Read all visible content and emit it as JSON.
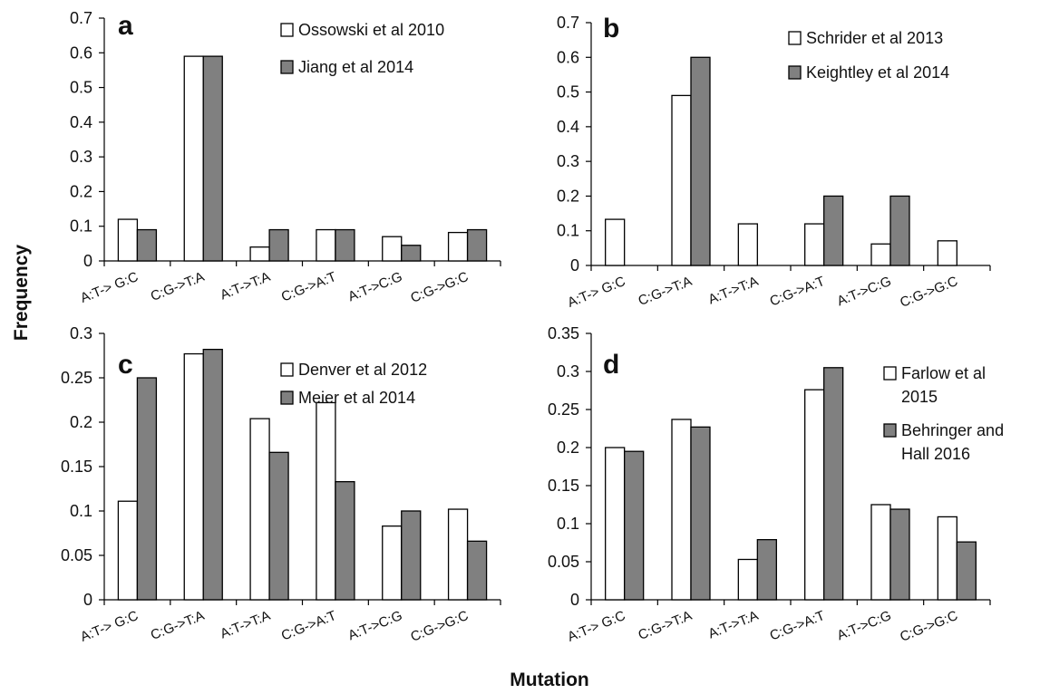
{
  "figure": {
    "ylabel": "Frequency",
    "xlabel": "Mutation"
  },
  "colors": {
    "series_1": "#ffffff",
    "series_2": "#808080",
    "bar_outline": "#000000"
  },
  "chart_data": [
    {
      "type": "bar",
      "panel": "a",
      "categories": [
        "A:T-> G:C",
        "C:G->T:A",
        "A:T->T:A",
        "C:G->A:T",
        "A:T->C:G",
        "C:G->G:C"
      ],
      "yticks": [
        "0",
        "0.1",
        "0.2",
        "0.3",
        "0.4",
        "0.5",
        "0.6",
        "0.7"
      ],
      "ylim": [
        0,
        0.7
      ],
      "legend_position": "top-right",
      "series": [
        {
          "name": "Ossowski et al 2010",
          "values": [
            0.12,
            0.59,
            0.04,
            0.09,
            0.07,
            0.082
          ]
        },
        {
          "name": "Jiang et al 2014",
          "values": [
            0.09,
            0.59,
            0.09,
            0.09,
            0.045,
            0.09
          ]
        }
      ]
    },
    {
      "type": "bar",
      "panel": "b",
      "categories": [
        "A:T-> G:C",
        "C:G->T:A",
        "A:T->T:A",
        "C:G->A:T",
        "A:T->C:G",
        "C:G->G:C"
      ],
      "yticks": [
        "0",
        "0.1",
        "0.2",
        "0.3",
        "0.4",
        "0.5",
        "0.6",
        "0.7"
      ],
      "ylim": [
        0,
        0.7
      ],
      "legend_position": "top-right",
      "series": [
        {
          "name": "Schrider et al 2013",
          "values": [
            0.133,
            0.49,
            0.12,
            0.12,
            0.062,
            0.071
          ]
        },
        {
          "name": "Keightley et al 2014",
          "values": [
            0,
            0.6,
            0,
            0.2,
            0.2,
            0
          ]
        }
      ]
    },
    {
      "type": "bar",
      "panel": "c",
      "categories": [
        "A:T-> G:C",
        "C:G->T:A",
        "A:T->T:A",
        "C:G->A:T",
        "A:T->C:G",
        "C:G->G:C"
      ],
      "yticks": [
        "0",
        "0.05",
        "0.1",
        "0.15",
        "0.2",
        "0.25",
        "0.3"
      ],
      "ylim": [
        0,
        0.3
      ],
      "legend_position": "top-right",
      "series": [
        {
          "name": "Denver et al 2012",
          "values": [
            0.111,
            0.277,
            0.204,
            0.222,
            0.083,
            0.102
          ]
        },
        {
          "name": "Meier et al 2014",
          "values": [
            0.25,
            0.282,
            0.166,
            0.133,
            0.1,
            0.066
          ]
        }
      ]
    },
    {
      "type": "bar",
      "panel": "d",
      "categories": [
        "A:T-> G:C",
        "C:G->T:A",
        "A:T->T:A",
        "C:G->A:T",
        "A:T->C:G",
        "C:G->G:C"
      ],
      "yticks": [
        "0",
        "0.05",
        "0.1",
        "0.15",
        "0.2",
        "0.25",
        "0.3",
        "0.35"
      ],
      "ylim": [
        0,
        0.35
      ],
      "legend_position": "top-right",
      "series": [
        {
          "name": "Farlow et al 2015",
          "values": [
            0.2,
            0.237,
            0.053,
            0.276,
            0.125,
            0.109
          ]
        },
        {
          "name": "Behringer and Hall 2016",
          "values": [
            0.195,
            0.227,
            0.079,
            0.305,
            0.119,
            0.076
          ]
        }
      ]
    }
  ]
}
